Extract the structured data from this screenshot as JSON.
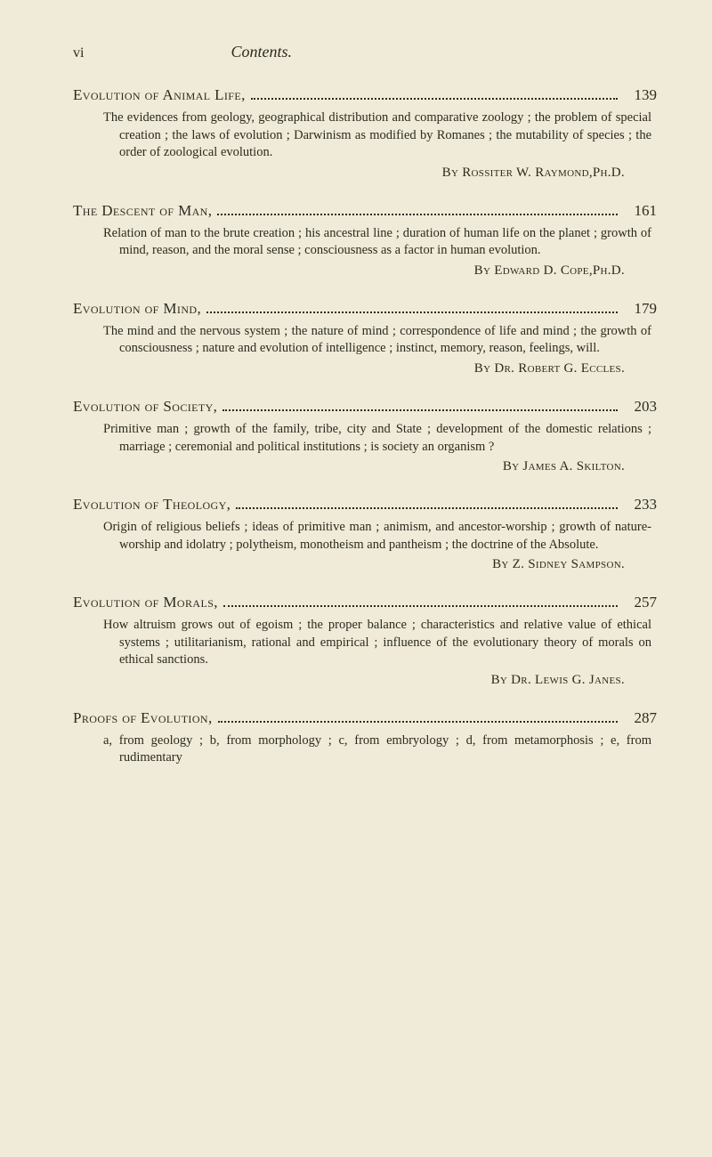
{
  "header": {
    "page_number": "vi",
    "running_title": "Contents."
  },
  "entries": [
    {
      "title": "Evolution of Animal Life,",
      "page": "139",
      "description": "The evidences from geology, geographical distribution and comparative zoology ; the problem of special creation ; the laws of evolution ; Darwinism as modified by Romanes ; the mutability of species ; the order of zoological evolution.",
      "author": "By Rossiter W. Raymond,Ph.D."
    },
    {
      "title": "The Descent of Man,",
      "page": "161",
      "description": "Relation of man to the brute creation ; his ancestral line ; duration of human life on the planet ; growth of mind, reason, and the moral sense ; consciousness as a factor in human evolution.",
      "author": "By Edward D. Cope,Ph.D."
    },
    {
      "title": "Evolution of Mind,",
      "page": "179",
      "description": "The mind and the nervous system ; the nature of mind ; correspondence of life and mind ; the growth of consciousness ; nature and evolution of intelligence ; instinct, memory, reason, feelings, will.",
      "author": "By Dr. Robert G. Eccles."
    },
    {
      "title": "Evolution of Society,",
      "page": "203",
      "description": "Primitive man ; growth of the family, tribe, city and State ; development of the domestic relations ; marriage ; ceremonial and political institutions ; is society an organism ?",
      "author": "By James A. Skilton."
    },
    {
      "title": "Evolution of Theology,",
      "page": "233",
      "description": "Origin of religious beliefs ; ideas of primitive man ; animism, and ancestor-worship ; growth of nature-worship and idolatry ; polytheism, monotheism and pantheism ; the doctrine of the Absolute.",
      "author": "By Z. Sidney Sampson."
    },
    {
      "title": "Evolution of Morals,",
      "page": "257",
      "description": "How altruism grows out of egoism ; the proper balance ; characteristics and relative value of ethical systems ; utilitarianism, rational and empirical ; influence of the evolutionary theory of morals on ethical sanctions.",
      "author": "By Dr. Lewis G. Janes."
    },
    {
      "title": "Proofs of Evolution,",
      "page": "287",
      "description": "a, from geology ; b, from morphology ; c, from embryology ; d, from metamorphosis ; e, from rudimentary",
      "author": ""
    }
  ]
}
